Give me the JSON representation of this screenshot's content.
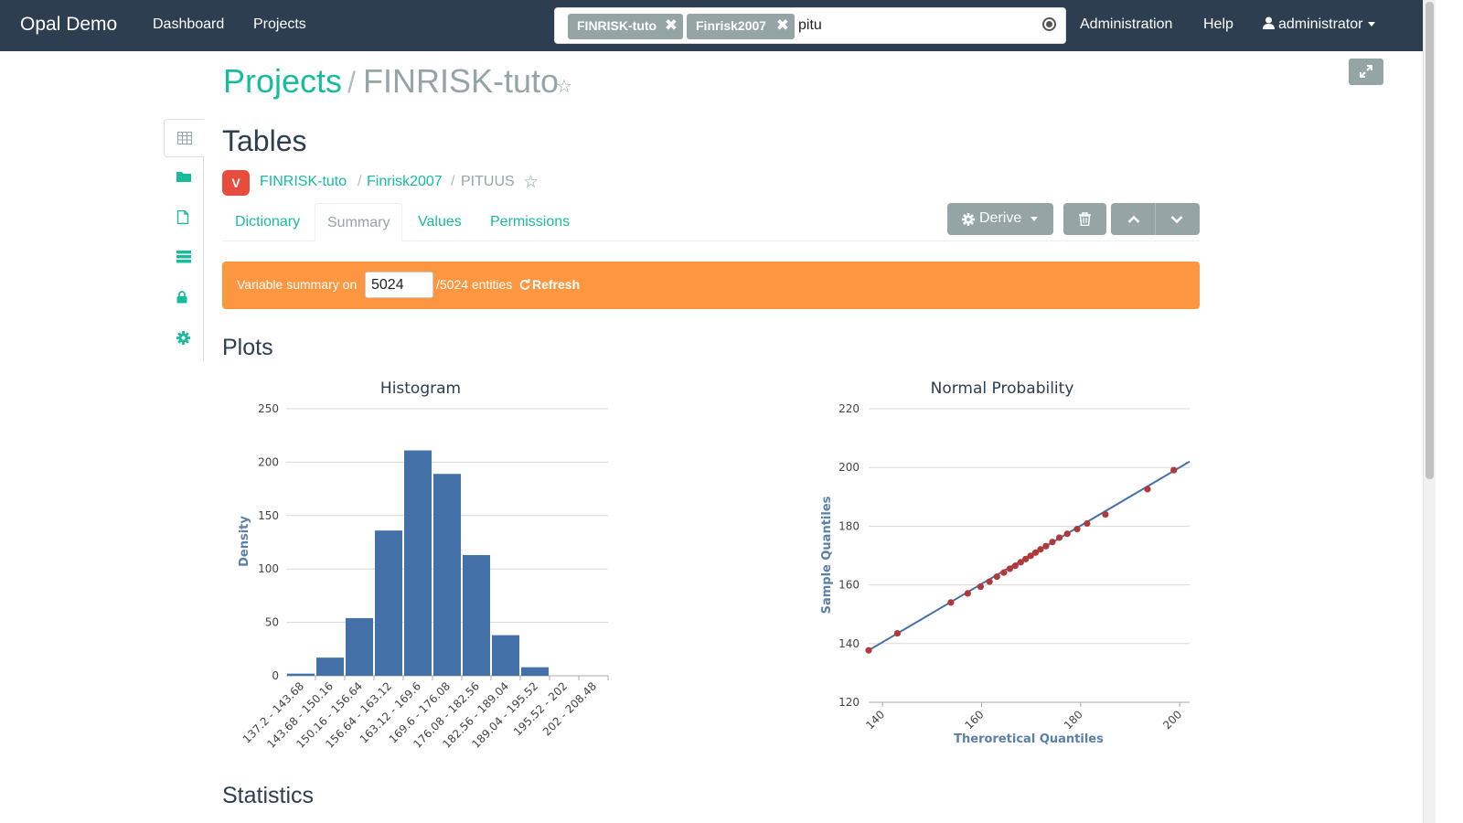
{
  "navbar": {
    "brand": "Opal Demo",
    "links": [
      "Dashboard",
      "Projects"
    ],
    "search": {
      "tags": [
        "FINRISK-tuto",
        "Finrisk2007"
      ],
      "query": "pitu"
    },
    "right_links": [
      "Administration",
      "Help"
    ],
    "user": "administrator"
  },
  "header": {
    "projects_label": "Projects",
    "separator": "/",
    "project_name": "FINRISK-tuto"
  },
  "sidebar": {
    "items": [
      "tables-icon",
      "folder-icon",
      "file-icon",
      "server-icon",
      "lock-icon",
      "gear-icon"
    ]
  },
  "tables": {
    "title": "Tables",
    "badge": "V",
    "breadcrumb": {
      "project": "FINRISK-tuto",
      "table": "Finrisk2007",
      "variable": "PITUUS",
      "sep": "/"
    },
    "tabs": [
      "Dictionary",
      "Summary",
      "Values",
      "Permissions"
    ],
    "active_tab": "Summary",
    "buttons": {
      "derive": "Derive"
    }
  },
  "summary_bar": {
    "label": "Variable summary on",
    "value": "5024",
    "total": "/5024 entities",
    "refresh": "Refresh"
  },
  "sections": {
    "plots": "Plots",
    "statistics": "Statistics"
  },
  "colors": {
    "navbar": "#2c3e50",
    "accent": "#18bc9c",
    "bar": "#4472a8",
    "points": "#b03a3a",
    "alert": "#fd9640"
  },
  "chart_data": [
    {
      "type": "bar",
      "title": "Histogram",
      "xlabel": "",
      "ylabel": "Density",
      "categories": [
        "137.2 - 143.68",
        "143.68 - 150.16",
        "150.16 - 156.64",
        "156.64 - 163.12",
        "163.12 - 169.6",
        "169.6 - 176.08",
        "176.08 - 182.56",
        "182.56 - 189.04",
        "189.04 - 195.52",
        "195.52 - 202",
        "202 - 208.48"
      ],
      "values": [
        2,
        17,
        54,
        136,
        211,
        189,
        113,
        38,
        8,
        0,
        0
      ],
      "ylim": [
        0,
        250
      ],
      "yticks": [
        0,
        50,
        100,
        150,
        200,
        250
      ],
      "grid": true
    },
    {
      "type": "scatter",
      "title": "Normal Probability",
      "xlabel": "Theroretical Quantiles",
      "ylabel": "Sample Quantiles",
      "xlim": [
        137.2,
        202
      ],
      "ylim": [
        120,
        220
      ],
      "xticks": [
        140,
        160,
        180,
        200
      ],
      "yticks": [
        120,
        140,
        160,
        180,
        200,
        220
      ],
      "line": [
        [
          137.2,
          137.7
        ],
        [
          202,
          202
        ]
      ],
      "x": [
        137.2,
        143.0,
        153.8,
        157.2,
        159.8,
        161.6,
        163.1,
        164.5,
        165.7,
        166.8,
        167.9,
        168.9,
        169.9,
        170.9,
        171.9,
        173.0,
        174.3,
        175.7,
        177.3,
        179.3,
        181.3,
        185.0,
        193.5,
        198.8
      ],
      "y": [
        137.7,
        143.5,
        154.0,
        157.1,
        159.4,
        161.1,
        162.8,
        164.2,
        165.5,
        166.5,
        167.7,
        168.8,
        169.9,
        171.0,
        172.1,
        173.2,
        174.6,
        176.1,
        177.4,
        179.0,
        180.9,
        184.0,
        192.6,
        199.1
      ],
      "grid": true
    }
  ]
}
